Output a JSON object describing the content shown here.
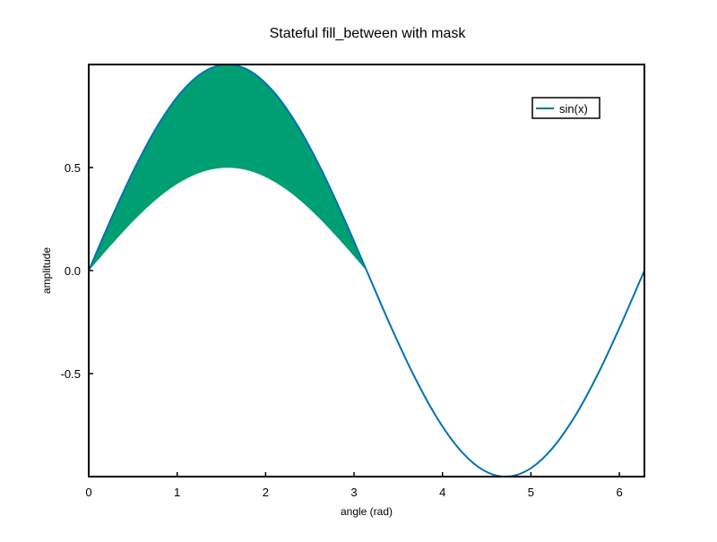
{
  "chart_data": {
    "type": "line",
    "title": "Stateful fill_between with mask",
    "xlabel": "angle (rad)",
    "ylabel": "amplitude",
    "xlim": [
      0,
      6.283
    ],
    "ylim": [
      -1,
      1
    ],
    "xticks": [
      0,
      1,
      2,
      3,
      4,
      5,
      6
    ],
    "xtick_labels": [
      "0",
      "1",
      "2",
      "3",
      "4",
      "5",
      "6"
    ],
    "yticks": [
      -0.5,
      0.0,
      0.5
    ],
    "ytick_labels": [
      "-0.5",
      "0.0",
      "0.5"
    ],
    "grid": false,
    "legend": {
      "placement": "top-right",
      "entries": [
        "sin(x)"
      ]
    },
    "series": [
      {
        "name": "sin(x)",
        "color": "#0072b2",
        "x": [
          0,
          0.262,
          0.524,
          0.785,
          1.047,
          1.309,
          1.571,
          1.833,
          2.094,
          2.356,
          2.618,
          2.88,
          3.142,
          3.403,
          3.665,
          3.927,
          4.189,
          4.451,
          4.712,
          4.974,
          5.236,
          5.498,
          5.76,
          6.021,
          6.283
        ],
        "y": [
          0,
          0.259,
          0.5,
          0.707,
          0.866,
          0.966,
          1,
          0.966,
          0.866,
          0.707,
          0.5,
          0.259,
          0,
          -0.259,
          -0.5,
          -0.707,
          -0.866,
          -0.966,
          -1,
          -0.966,
          -0.866,
          -0.707,
          -0.5,
          -0.259,
          0
        ]
      }
    ],
    "fill_between": {
      "color": "#009e73",
      "x": [
        0,
        0.262,
        0.524,
        0.785,
        1.047,
        1.309,
        1.571,
        1.833,
        2.094,
        2.356,
        2.618,
        2.88,
        3.142
      ],
      "y1": [
        0,
        0.259,
        0.5,
        0.707,
        0.866,
        0.966,
        1,
        0.966,
        0.866,
        0.707,
        0.5,
        0.259,
        0
      ],
      "y2": [
        0,
        0.129,
        0.25,
        0.354,
        0.433,
        0.483,
        0.5,
        0.483,
        0.433,
        0.354,
        0.25,
        0.129,
        0
      ]
    }
  }
}
